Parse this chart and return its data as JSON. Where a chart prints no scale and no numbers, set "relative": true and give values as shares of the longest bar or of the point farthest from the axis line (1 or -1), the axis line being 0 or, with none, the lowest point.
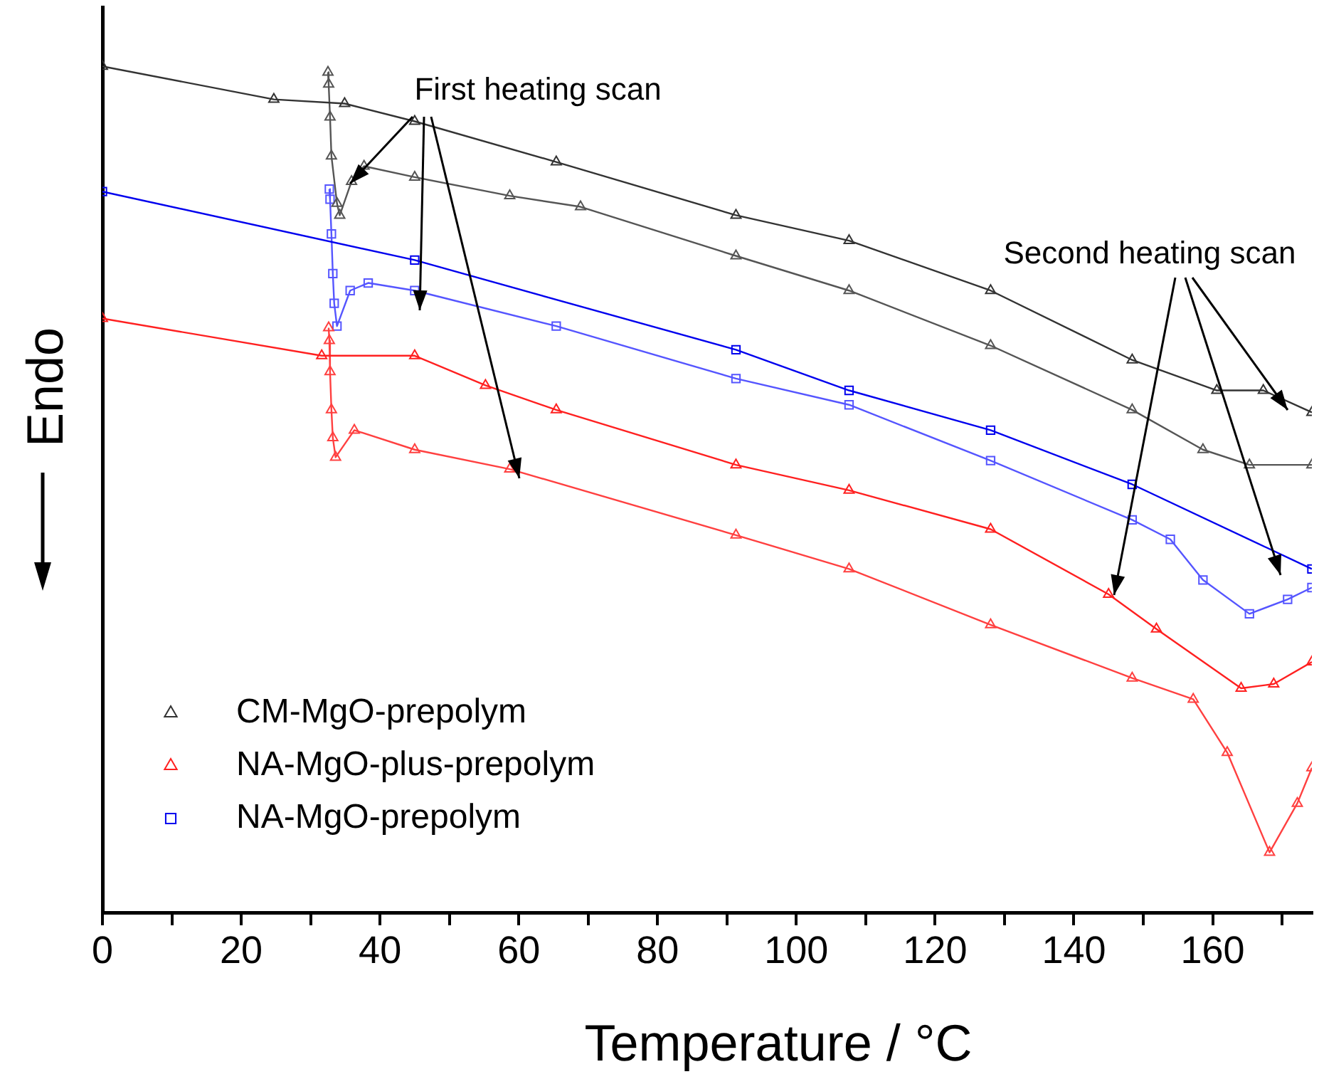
{
  "chart_data": {
    "type": "line",
    "relative": true,
    "xlabel": "Temperature / °C",
    "ylabel": "Endo",
    "xlim": [
      0,
      174.3
    ],
    "xticks": [
      0,
      {
        "value": 10,
        "label": null
      },
      20,
      {
        "value": 30,
        "label": null
      },
      40,
      {
        "value": 50,
        "label": null
      },
      60,
      {
        "value": 70,
        "label": null
      },
      80,
      {
        "value": 90,
        "label": null
      },
      100,
      {
        "value": 110,
        "label": null
      },
      120,
      {
        "value": 130,
        "label": null
      },
      140,
      {
        "value": 150,
        "label": null
      },
      160,
      {
        "value": 170,
        "label": null
      }
    ],
    "legend": "bottom left",
    "grid": false,
    "line_style": "solid",
    "annotations": [
      "First heating scan",
      "Second heating scan"
    ],
    "series": [
      {
        "name": "CM-MgO-prepolym",
        "color": "#333333",
        "marker": "triangle",
        "x": [
          0,
          24.7,
          34.9,
          45.0,
          65.4,
          91.3,
          107.6,
          128.0,
          148.4,
          160.6,
          167.3,
          174.3
        ],
        "values": [
          1.0,
          0.961,
          0.956,
          0.935,
          0.887,
          0.824,
          0.794,
          0.735,
          0.653,
          0.617,
          0.617,
          0.591
        ]
      },
      {
        "color": "#555555",
        "marker": "triangle",
        "x": [
          32.5,
          32.6,
          32.8,
          33.0,
          33.8,
          34.2,
          35.9,
          37.7,
          45.0,
          58.7,
          68.9,
          91.3,
          107.6,
          128.0,
          148.4,
          158.6,
          165.3,
          174.3
        ],
        "values": [
          0.993,
          0.979,
          0.94,
          0.894,
          0.838,
          0.824,
          0.864,
          0.882,
          0.869,
          0.847,
          0.834,
          0.776,
          0.735,
          0.67,
          0.594,
          0.547,
          0.529,
          0.529
        ]
      },
      {
        "name": "NA-MgO-plus-prepolym",
        "color": "#ff2020",
        "marker": "triangle",
        "x": [
          0,
          31.6,
          45.0,
          55.2,
          65.4,
          91.3,
          107.6,
          128.0,
          145.0,
          151.9,
          164.1,
          168.8,
          174.3
        ],
        "values": [
          0.702,
          0.658,
          0.658,
          0.623,
          0.594,
          0.529,
          0.499,
          0.453,
          0.376,
          0.335,
          0.265,
          0.27,
          0.296
        ]
      },
      {
        "color": "#ff4040",
        "marker": "triangle",
        "x": [
          32.6,
          32.7,
          32.8,
          33.0,
          33.2,
          33.6,
          36.3,
          45.0,
          58.7,
          91.3,
          107.6,
          128.0,
          148.4,
          157.2,
          162.1,
          168.2,
          172.2,
          174.3
        ],
        "values": [
          0.691,
          0.676,
          0.639,
          0.594,
          0.561,
          0.538,
          0.57,
          0.547,
          0.524,
          0.446,
          0.406,
          0.34,
          0.277,
          0.252,
          0.189,
          0.071,
          0.129,
          0.171
        ]
      },
      {
        "name": "NA-MgO-prepolym",
        "color": "#0000ee",
        "marker": "square",
        "x": [
          0,
          45.0,
          91.3,
          107.6,
          128.0,
          148.4,
          174.3
        ],
        "values": [
          0.852,
          0.771,
          0.665,
          0.617,
          0.57,
          0.506,
          0.406
        ]
      },
      {
        "color": "#5555ff",
        "marker": "square",
        "x": [
          32.7,
          32.8,
          33.0,
          33.2,
          33.4,
          33.8,
          35.7,
          38.3,
          45.0,
          65.4,
          91.3,
          107.6,
          128.0,
          148.4,
          153.9,
          158.6,
          165.3,
          170.8,
          174.3
        ],
        "values": [
          0.855,
          0.843,
          0.802,
          0.755,
          0.72,
          0.693,
          0.735,
          0.744,
          0.735,
          0.693,
          0.631,
          0.6,
          0.534,
          0.464,
          0.441,
          0.393,
          0.353,
          0.37,
          0.384
        ]
      }
    ]
  }
}
